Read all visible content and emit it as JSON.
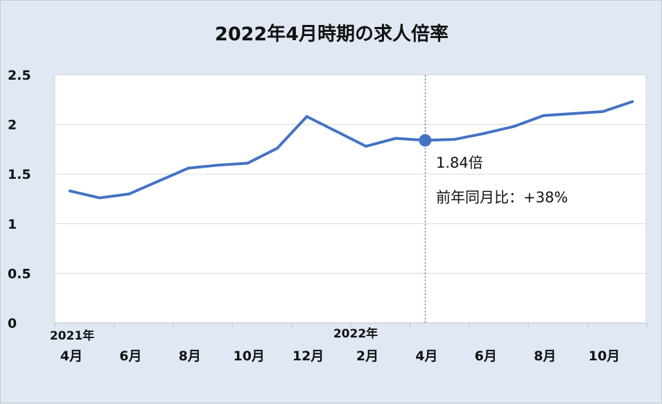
{
  "chart_data": {
    "type": "line",
    "title": "2022年4月時期の求人倍率",
    "xlabel": "",
    "ylabel": "",
    "ylim": [
      0,
      2.5
    ],
    "yticks": [
      "0",
      "0.5",
      "1",
      "1.5",
      "2",
      "2.5"
    ],
    "x": [
      "2021-04",
      "2021-05",
      "2021-06",
      "2021-07",
      "2021-08",
      "2021-09",
      "2021-10",
      "2021-11",
      "2021-12",
      "2022-01",
      "2022-02",
      "2022-03",
      "2022-04",
      "2022-05",
      "2022-06",
      "2022-07",
      "2022-08",
      "2022-09",
      "2022-10",
      "2022-11"
    ],
    "x_tick_labels": [
      "4月",
      "6月",
      "8月",
      "10月",
      "12月",
      "2月",
      "4月",
      "6月",
      "8月",
      "10月"
    ],
    "year_labels": [
      "2021年",
      "2022年"
    ],
    "series": [
      {
        "values": [
          1.33,
          1.26,
          1.3,
          1.43,
          1.56,
          1.59,
          1.61,
          1.76,
          2.08,
          1.93,
          1.78,
          1.86,
          1.84,
          1.85,
          1.91,
          1.98,
          2.09,
          2.11,
          2.13,
          2.23
        ]
      }
    ],
    "highlight": {
      "x": "2022-04",
      "value": 1.84
    },
    "annotations": [
      "1.84倍",
      "前年同月比：+38%"
    ],
    "grid": true,
    "line_color": "#4472c4",
    "plot_background": "#ffffff",
    "page_background": "#dfe8f3"
  }
}
